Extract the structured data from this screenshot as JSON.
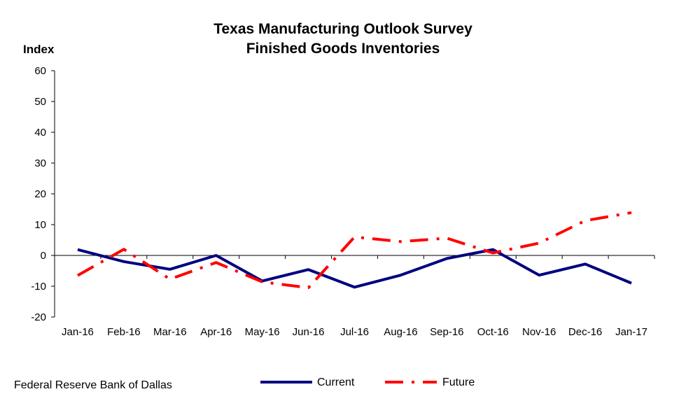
{
  "chart_data": {
    "type": "line",
    "title": "Texas Manufacturing Outlook Survey",
    "subtitle": "Finished Goods Inventories",
    "ylabel": "Index",
    "xlabel": "",
    "ylim": [
      -20,
      60
    ],
    "yticks": [
      60,
      50,
      40,
      30,
      20,
      10,
      0,
      -10,
      -20
    ],
    "categories": [
      "Jan-16",
      "Feb-16",
      "Mar-16",
      "Apr-16",
      "May-16",
      "Jun-16",
      "Jul-16",
      "Aug-16",
      "Sep-16",
      "Oct-16",
      "Nov-16",
      "Dec-16",
      "Jan-17"
    ],
    "series": [
      {
        "name": "Current",
        "color": "#000080",
        "style": "solid",
        "values": [
          1.9,
          -2.0,
          -4.5,
          0.0,
          -8.3,
          -4.6,
          -10.3,
          -6.4,
          -1.0,
          1.9,
          -6.4,
          -2.8,
          -9.0
        ]
      },
      {
        "name": "Future",
        "color": "#ff0000",
        "style": "dash-dot",
        "values": [
          -6.5,
          2.0,
          -7.7,
          -2.3,
          -8.6,
          -10.5,
          6.0,
          4.5,
          5.6,
          0.8,
          4.0,
          11.3,
          13.9
        ]
      }
    ],
    "grid": false,
    "legend_position": "bottom-center"
  },
  "footer": {
    "source": "Federal Reserve Bank of Dallas"
  }
}
